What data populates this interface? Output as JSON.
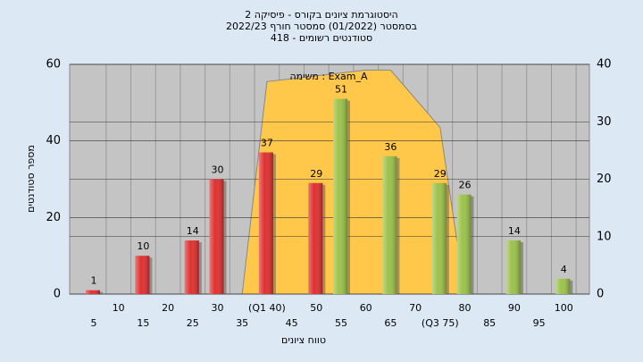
{
  "chart_data": {
    "type": "bar",
    "title": [
      "היסטוגרמת ציונים בקורס - פיסיקה 2",
      "בסמסטר  (01/2022)  סמסטר חורף 2022/23",
      "סטודנטים רשומים - 418"
    ],
    "y_label": "מספר סטודנטים",
    "x_label": "טווח ציונים",
    "annotation": "משימה : Exam_A",
    "categories": [
      "5",
      "10",
      "15",
      "20",
      "25",
      "30",
      "35",
      "(Q1 40)",
      "45",
      "50",
      "55",
      "60",
      "65",
      "70",
      "(Q3 75)",
      "80",
      "85",
      "90",
      "95",
      "100"
    ],
    "values": [
      1,
      null,
      10,
      null,
      14,
      30,
      null,
      37,
      null,
      29,
      51,
      null,
      36,
      null,
      29,
      26,
      null,
      14,
      null,
      4
    ],
    "colors": [
      "#e03030",
      null,
      "#e03030",
      null,
      "#e03030",
      "#e03030",
      null,
      "#e03030",
      null,
      "#e03030",
      "#9cc24a",
      null,
      "#9cc24a",
      null,
      "#9cc24a",
      "#9cc24a",
      null,
      "#9cc24a",
      null,
      "#9cc24a"
    ],
    "area": {
      "axis": "y2",
      "color": "#ffc84a",
      "x": [
        35,
        40,
        60,
        65,
        75,
        80
      ],
      "values": [
        0,
        37,
        39,
        39,
        29,
        0
      ]
    },
    "ylim": [
      0,
      60
    ],
    "yticks": [
      0,
      20,
      40,
      60
    ],
    "y2lim": [
      0,
      40
    ],
    "y2ticks": [
      0,
      10,
      20,
      30,
      40
    ],
    "grid": true
  }
}
